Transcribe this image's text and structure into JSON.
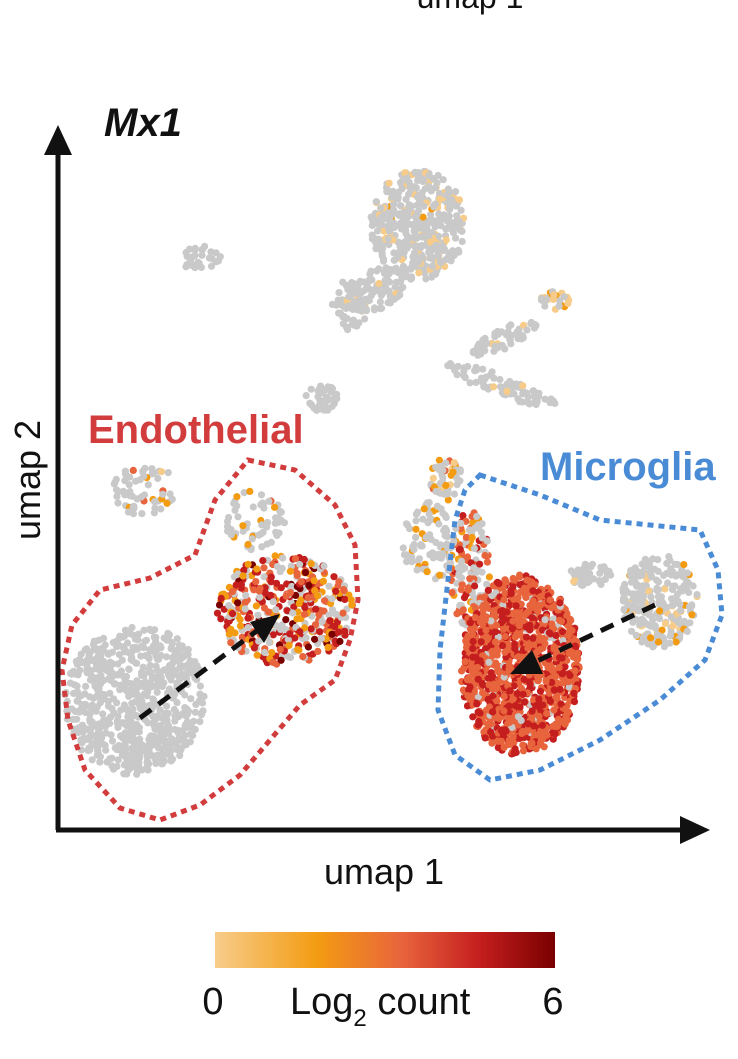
{
  "top_cut_label": "umap 1",
  "chart_data": {
    "type": "scatter",
    "title": "Mx1",
    "xlabel": "umap 1",
    "ylabel": "umap 2",
    "grid": false,
    "annotations": [
      {
        "text": "Endothelial",
        "color": "#d23c3c"
      },
      {
        "text": "Microglia",
        "color": "#4a8bd6"
      }
    ],
    "colorbar": {
      "label_main": "Log",
      "label_sub": "2",
      "label_tail": " count",
      "min": 0,
      "max": 6,
      "min_label": "0",
      "max_label": "6",
      "colors": [
        "#f7cc8a",
        "#f39c12",
        "#e8643c",
        "#c41e1e",
        "#7a0000"
      ]
    },
    "colors": {
      "unexpressed": "#c9c9c9",
      "endothelial_outline": "#d23c3c",
      "microglia_outline": "#4a8bd6",
      "arrow": "#111111"
    }
  }
}
